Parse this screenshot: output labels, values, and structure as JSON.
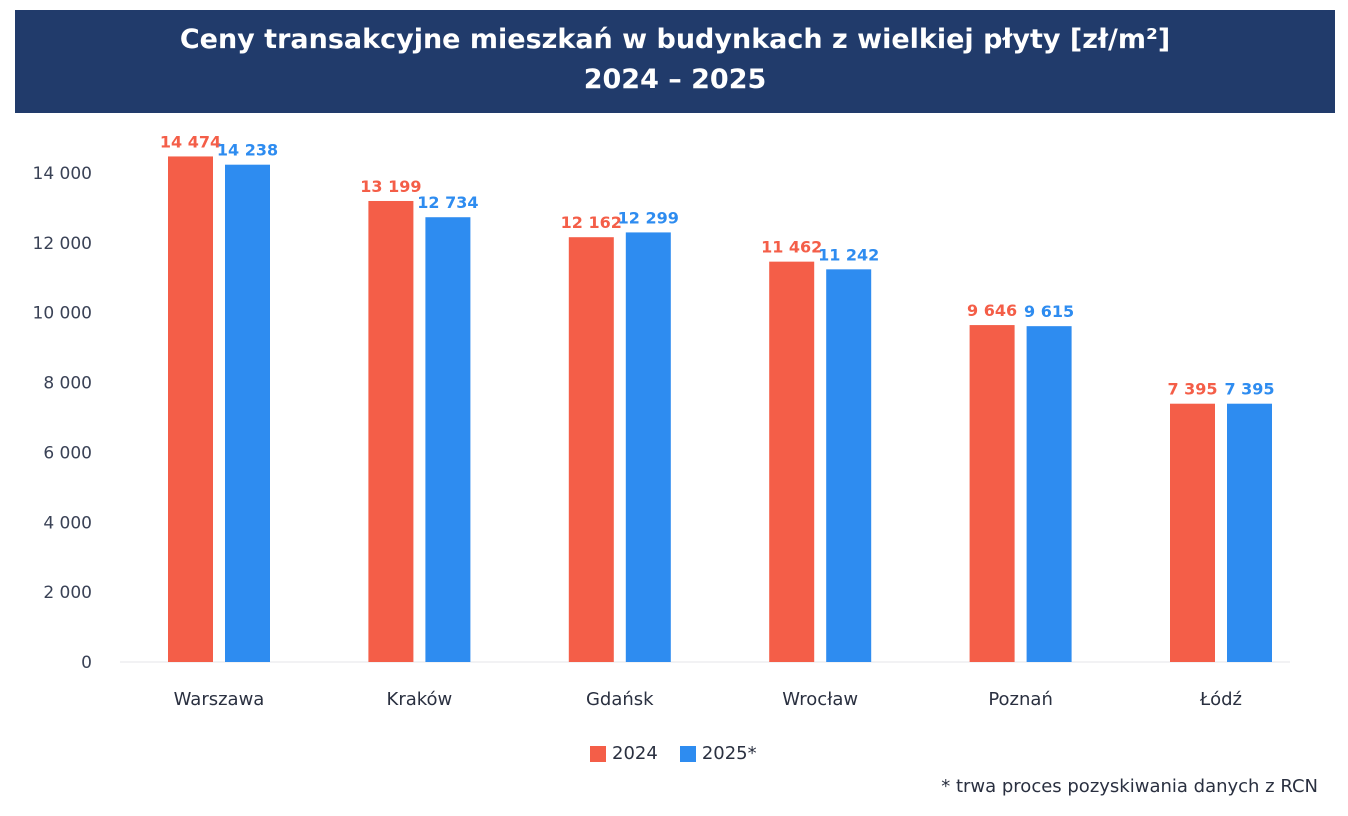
{
  "chart_data": {
    "type": "bar",
    "title": "Ceny transakcyjne mieszkań w budynkach z wielkiej płyty [zł/m²]",
    "subtitle": "2024 – 2025",
    "categories": [
      "Warszawa",
      "Kraków",
      "Gdańsk",
      "Wrocław",
      "Poznań",
      "Łódź"
    ],
    "series": [
      {
        "name": "2024",
        "color": "#f45e48",
        "values": [
          14474,
          13199,
          12162,
          11462,
          9646,
          7395
        ],
        "labels": [
          "14 474",
          "13 199",
          "12 162",
          "11 462",
          "9 646",
          "7 395"
        ]
      },
      {
        "name": "2025*",
        "color": "#2e8cf0",
        "values": [
          14238,
          12734,
          12299,
          11242,
          9615,
          7395
        ],
        "labels": [
          "14 238",
          "12 734",
          "12 299",
          "11 242",
          "9 615",
          "7 395"
        ]
      }
    ],
    "yticks": [
      0,
      2000,
      4000,
      6000,
      8000,
      10000,
      12000,
      14000
    ],
    "ytick_labels": [
      "0",
      "2 000",
      "4 000",
      "6 000",
      "8 000",
      "10 000",
      "12 000",
      "14 000"
    ],
    "ylim": [
      0,
      14000
    ],
    "xlabel": "",
    "ylabel": "",
    "legend": "bottom",
    "grid": false,
    "footnote": "* trwa proces pozyskiwania danych z RCN"
  }
}
